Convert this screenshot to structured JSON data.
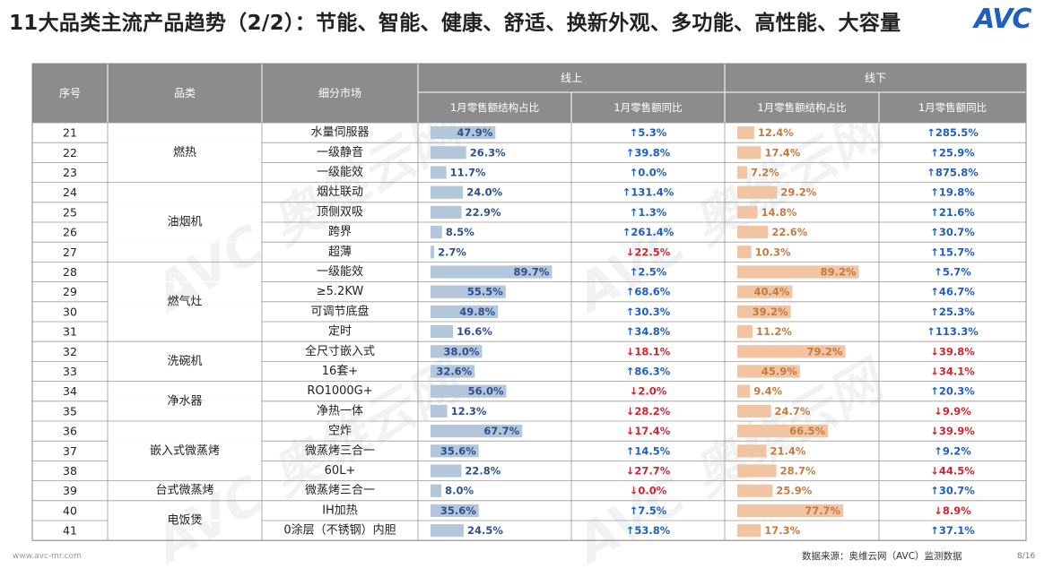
{
  "title": "11大品类主流产品趋势（2/2）：节能、智能、健康、舒适、换新外观、多功能、高性能、大容量",
  "logo": "AVC",
  "watermark": "AVC 奥维云网",
  "footer": {
    "website": "www.avc-mr.com",
    "source": "数据来源：奥维云网（AVC）监测数据",
    "page": "8/16"
  },
  "colors": {
    "header_bg": "#8c8c8c",
    "online_bar": "#b3c6da",
    "offline_bar": "#f1c4a3",
    "share_text": "#2f4f8f",
    "offline_share_text": "#c57a3e",
    "up": "#1f5fbf",
    "down": "#d0262f"
  },
  "chart_data": {
    "type": "table",
    "headers": {
      "index": "序号",
      "category": "品类",
      "segment": "细分市场",
      "online": "线上",
      "offline": "线下",
      "share": "1月零售额结构占比",
      "yoy": "1月零售额同比"
    },
    "groups": [
      {
        "name": "燃热",
        "start": 0,
        "span": 3
      },
      {
        "name": "油烟机",
        "start": 3,
        "span": 4
      },
      {
        "name": "燃气灶",
        "start": 7,
        "span": 4
      },
      {
        "name": "洗碗机",
        "start": 11,
        "span": 2
      },
      {
        "name": "净水器",
        "start": 13,
        "span": 2
      },
      {
        "name": "嵌入式微蒸烤",
        "start": 15,
        "span": 3
      },
      {
        "name": "台式微蒸烤",
        "start": 18,
        "span": 1
      },
      {
        "name": "电饭煲",
        "start": 19,
        "span": 2
      }
    ],
    "rows": [
      {
        "no": "21",
        "segment": "水量伺服器",
        "on_share": 47.9,
        "on_share_label": "47.9%",
        "on_yoy": "5.3%",
        "on_up": true,
        "off_share": 12.4,
        "off_share_label": "12.4%",
        "off_yoy": "285.5%",
        "off_up": true
      },
      {
        "no": "22",
        "segment": "一级静音",
        "on_share": 26.3,
        "on_share_label": "26.3%",
        "on_yoy": "39.8%",
        "on_up": true,
        "off_share": 17.4,
        "off_share_label": "17.4%",
        "off_yoy": "25.9%",
        "off_up": true
      },
      {
        "no": "23",
        "segment": "一级能效",
        "on_share": 11.7,
        "on_share_label": "11.7%",
        "on_yoy": "0.0%",
        "on_up": true,
        "off_share": 7.2,
        "off_share_label": "7.2%",
        "off_yoy": "875.8%",
        "off_up": true
      },
      {
        "no": "24",
        "segment": "烟灶联动",
        "on_share": 24.0,
        "on_share_label": "24.0%",
        "on_yoy": "131.4%",
        "on_up": true,
        "off_share": 29.2,
        "off_share_label": "29.2%",
        "off_yoy": "19.8%",
        "off_up": true
      },
      {
        "no": "25",
        "segment": "顶侧双吸",
        "on_share": 22.9,
        "on_share_label": "22.9%",
        "on_yoy": "1.3%",
        "on_up": true,
        "off_share": 14.8,
        "off_share_label": "14.8%",
        "off_yoy": "21.6%",
        "off_up": true
      },
      {
        "no": "26",
        "segment": "跨界",
        "on_share": 8.5,
        "on_share_label": "8.5%",
        "on_yoy": "261.4%",
        "on_up": true,
        "off_share": 22.6,
        "off_share_label": "22.6%",
        "off_yoy": "30.7%",
        "off_up": true
      },
      {
        "no": "27",
        "segment": "超薄",
        "on_share": 2.7,
        "on_share_label": "2.7%",
        "on_yoy": "22.5%",
        "on_up": false,
        "off_share": 10.3,
        "off_share_label": "10.3%",
        "off_yoy": "15.7%",
        "off_up": true
      },
      {
        "no": "28",
        "segment": "一级能效",
        "on_share": 89.7,
        "on_share_label": "89.7%",
        "on_yoy": "2.5%",
        "on_up": true,
        "off_share": 89.2,
        "off_share_label": "89.2%",
        "off_yoy": "5.7%",
        "off_up": true
      },
      {
        "no": "29",
        "segment": "≥5.2KW",
        "on_share": 55.5,
        "on_share_label": "55.5%",
        "on_yoy": "68.6%",
        "on_up": true,
        "off_share": 40.4,
        "off_share_label": "40.4%",
        "off_yoy": "46.7%",
        "off_up": true
      },
      {
        "no": "30",
        "segment": "可调节底盘",
        "on_share": 49.8,
        "on_share_label": "49.8%",
        "on_yoy": "30.3%",
        "on_up": true,
        "off_share": 39.2,
        "off_share_label": "39.2%",
        "off_yoy": "25.3%",
        "off_up": true
      },
      {
        "no": "31",
        "segment": "定时",
        "on_share": 16.6,
        "on_share_label": "16.6%",
        "on_yoy": "34.8%",
        "on_up": true,
        "off_share": 11.2,
        "off_share_label": "11.2%",
        "off_yoy": "113.3%",
        "off_up": true
      },
      {
        "no": "32",
        "segment": "全尺寸嵌入式",
        "on_share": 38.0,
        "on_share_label": "38.0%",
        "on_yoy": "18.1%",
        "on_up": false,
        "off_share": 79.2,
        "off_share_label": "79.2%",
        "off_yoy": "39.8%",
        "off_up": false
      },
      {
        "no": "33",
        "segment": "16套+",
        "on_share": 32.6,
        "on_share_label": "32.6%",
        "on_yoy": "86.3%",
        "on_up": true,
        "off_share": 45.9,
        "off_share_label": "45.9%",
        "off_yoy": "34.1%",
        "off_up": false
      },
      {
        "no": "34",
        "segment": "RO1000G+",
        "on_share": 56.0,
        "on_share_label": "56.0%",
        "on_yoy": "2.0%",
        "on_up": false,
        "off_share": 9.4,
        "off_share_label": "9.4%",
        "off_yoy": "20.3%",
        "off_up": true
      },
      {
        "no": "35",
        "segment": "净热一体",
        "on_share": 12.3,
        "on_share_label": "12.3%",
        "on_yoy": "28.2%",
        "on_up": false,
        "off_share": 24.7,
        "off_share_label": "24.7%",
        "off_yoy": "9.9%",
        "off_up": false
      },
      {
        "no": "36",
        "segment": "空炸",
        "on_share": 67.7,
        "on_share_label": "67.7%",
        "on_yoy": "17.4%",
        "on_up": false,
        "off_share": 66.5,
        "off_share_label": "66.5%",
        "off_yoy": "39.9%",
        "off_up": false
      },
      {
        "no": "37",
        "segment": "微蒸烤三合一",
        "on_share": 35.6,
        "on_share_label": "35.6%",
        "on_yoy": "14.5%",
        "on_up": true,
        "off_share": 21.4,
        "off_share_label": "21.4%",
        "off_yoy": "9.2%",
        "off_up": true
      },
      {
        "no": "38",
        "segment": "60L+",
        "on_share": 22.8,
        "on_share_label": "22.8%",
        "on_yoy": "27.7%",
        "on_up": false,
        "off_share": 28.7,
        "off_share_label": "28.7%",
        "off_yoy": "44.5%",
        "off_up": false
      },
      {
        "no": "39",
        "segment": "微蒸烤三合一",
        "on_share": 8.0,
        "on_share_label": "8.0%",
        "on_yoy": "0.0%",
        "on_up": false,
        "off_share": 25.9,
        "off_share_label": "25.9%",
        "off_yoy": "30.7%",
        "off_up": true
      },
      {
        "no": "40",
        "segment": "IH加热",
        "on_share": 35.6,
        "on_share_label": "35.6%",
        "on_yoy": "7.5%",
        "on_up": true,
        "off_share": 77.7,
        "off_share_label": "77.7%",
        "off_yoy": "8.9%",
        "off_up": false
      },
      {
        "no": "41",
        "segment": "0涂层（不锈钢）内胆",
        "on_share": 24.5,
        "on_share_label": "24.5%",
        "on_yoy": "53.8%",
        "on_up": true,
        "off_share": 17.3,
        "off_share_label": "17.3%",
        "off_yoy": "37.1%",
        "off_up": true
      }
    ]
  }
}
